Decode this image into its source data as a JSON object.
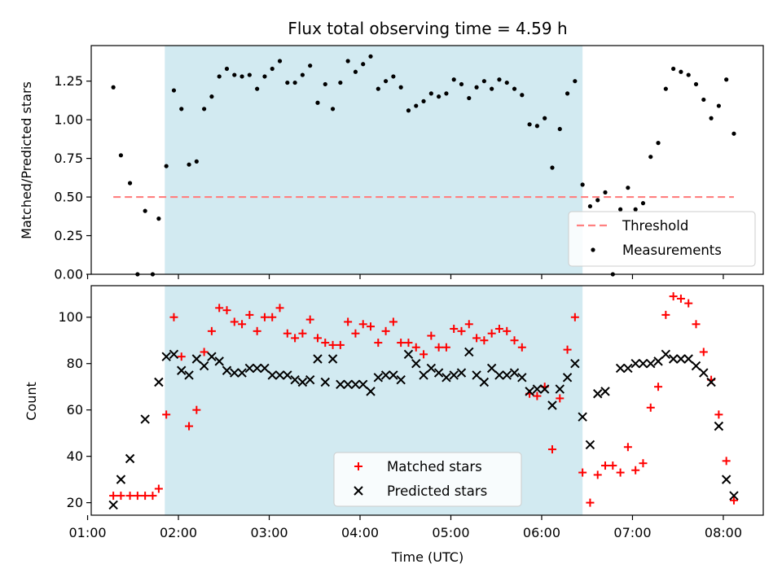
{
  "chart_data": [
    {
      "type": "scatter",
      "title": "Flux total observing time = 4.59 h",
      "xlabel": "",
      "ylabel": "Matched/Predicted stars",
      "ylim": [
        0,
        1.48
      ],
      "xlim_hours": [
        1.04,
        8.44
      ],
      "x_time_axis": "UTC",
      "yticks": [
        0,
        0.25,
        0.5,
        0.75,
        1.0,
        1.25
      ],
      "ytick_labels": [
        "0.00",
        "0.25",
        "0.50",
        "0.75",
        "1.00",
        "1.25"
      ],
      "shaded_interval": [
        "01:51",
        "06:27"
      ],
      "shade_color": "#add8e6",
      "threshold": {
        "name": "Threshold",
        "value": 0.5,
        "x_range": [
          "01:17",
          "08:07"
        ],
        "color": "#ff8080",
        "style": "dashed"
      },
      "series": [
        {
          "name": "Measurements",
          "marker": "dot",
          "color": "#000000",
          "points": [
            [
              "01:17",
              1.21
            ],
            [
              "01:22",
              0.77
            ],
            [
              "01:28",
              0.59
            ],
            [
              "01:33",
              0.0
            ],
            [
              "01:38",
              0.41
            ],
            [
              "01:43",
              0.0
            ],
            [
              "01:47",
              0.36
            ],
            [
              "01:52",
              0.7
            ],
            [
              "01:57",
              1.19
            ],
            [
              "02:02",
              1.07
            ],
            [
              "02:07",
              0.71
            ],
            [
              "02:12",
              0.73
            ],
            [
              "02:17",
              1.07
            ],
            [
              "02:22",
              1.15
            ],
            [
              "02:27",
              1.28
            ],
            [
              "02:32",
              1.33
            ],
            [
              "02:37",
              1.29
            ],
            [
              "02:42",
              1.28
            ],
            [
              "02:47",
              1.29
            ],
            [
              "02:52",
              1.2
            ],
            [
              "02:57",
              1.28
            ],
            [
              "03:02",
              1.33
            ],
            [
              "03:07",
              1.38
            ],
            [
              "03:12",
              1.24
            ],
            [
              "03:17",
              1.24
            ],
            [
              "03:22",
              1.29
            ],
            [
              "03:27",
              1.35
            ],
            [
              "03:32",
              1.11
            ],
            [
              "03:37",
              1.23
            ],
            [
              "03:42",
              1.07
            ],
            [
              "03:47",
              1.24
            ],
            [
              "03:52",
              1.38
            ],
            [
              "03:57",
              1.31
            ],
            [
              "04:02",
              1.36
            ],
            [
              "04:07",
              1.41
            ],
            [
              "04:12",
              1.2
            ],
            [
              "04:17",
              1.25
            ],
            [
              "04:22",
              1.28
            ],
            [
              "04:27",
              1.21
            ],
            [
              "04:32",
              1.06
            ],
            [
              "04:37",
              1.09
            ],
            [
              "04:42",
              1.12
            ],
            [
              "04:47",
              1.17
            ],
            [
              "04:52",
              1.15
            ],
            [
              "04:57",
              1.17
            ],
            [
              "05:02",
              1.26
            ],
            [
              "05:07",
              1.23
            ],
            [
              "05:12",
              1.14
            ],
            [
              "05:17",
              1.21
            ],
            [
              "05:22",
              1.25
            ],
            [
              "05:27",
              1.2
            ],
            [
              "05:32",
              1.26
            ],
            [
              "05:37",
              1.24
            ],
            [
              "05:42",
              1.2
            ],
            [
              "05:47",
              1.16
            ],
            [
              "05:52",
              0.97
            ],
            [
              "05:57",
              0.96
            ],
            [
              "06:02",
              1.01
            ],
            [
              "06:07",
              0.69
            ],
            [
              "06:12",
              0.94
            ],
            [
              "06:17",
              1.17
            ],
            [
              "06:22",
              1.25
            ],
            [
              "06:27",
              0.58
            ],
            [
              "06:32",
              0.44
            ],
            [
              "06:37",
              0.48
            ],
            [
              "06:42",
              0.53
            ],
            [
              "06:47",
              0.0
            ],
            [
              "06:52",
              0.42
            ],
            [
              "06:57",
              0.56
            ],
            [
              "07:02",
              0.42
            ],
            [
              "07:07",
              0.46
            ],
            [
              "07:12",
              0.76
            ],
            [
              "07:17",
              0.85
            ],
            [
              "07:22",
              1.2
            ],
            [
              "07:27",
              1.33
            ],
            [
              "07:32",
              1.31
            ],
            [
              "07:37",
              1.29
            ],
            [
              "07:42",
              1.23
            ],
            [
              "07:47",
              1.13
            ],
            [
              "07:52",
              1.01
            ],
            [
              "07:57",
              1.09
            ],
            [
              "08:02",
              1.26
            ],
            [
              "08:07",
              0.91
            ]
          ]
        }
      ],
      "legend": {
        "placement": "lower right",
        "entries": [
          "Threshold",
          "Measurements"
        ]
      }
    },
    {
      "type": "scatter",
      "title": "",
      "xlabel": "Time (UTC)",
      "ylabel": "Count",
      "ylim": [
        14.6,
        113.6
      ],
      "xlim_hours": [
        1.04,
        8.44
      ],
      "yticks": [
        20,
        40,
        60,
        80,
        100
      ],
      "ytick_labels": [
        "20",
        "40",
        "60",
        "80",
        "100"
      ],
      "xticks": [
        "01:00",
        "02:00",
        "03:00",
        "04:00",
        "05:00",
        "06:00",
        "07:00",
        "08:00"
      ],
      "shaded_interval": [
        "01:51",
        "06:27"
      ],
      "shade_color": "#add8e6",
      "series": [
        {
          "name": "Matched stars",
          "marker": "plus",
          "color": "#ff0000",
          "points": [
            [
              "01:17",
              23
            ],
            [
              "01:22",
              23
            ],
            [
              "01:28",
              23
            ],
            [
              "01:33",
              23
            ],
            [
              "01:38",
              23
            ],
            [
              "01:43",
              23
            ],
            [
              "01:47",
              26
            ],
            [
              "01:52",
              58
            ],
            [
              "01:57",
              100
            ],
            [
              "02:02",
              83
            ],
            [
              "02:07",
              53
            ],
            [
              "02:12",
              60
            ],
            [
              "02:17",
              85
            ],
            [
              "02:22",
              94
            ],
            [
              "02:27",
              104
            ],
            [
              "02:32",
              103
            ],
            [
              "02:37",
              98
            ],
            [
              "02:42",
              97
            ],
            [
              "02:47",
              101
            ],
            [
              "02:52",
              94
            ],
            [
              "02:57",
              100
            ],
            [
              "03:02",
              100
            ],
            [
              "03:07",
              104
            ],
            [
              "03:12",
              93
            ],
            [
              "03:17",
              91
            ],
            [
              "03:22",
              93
            ],
            [
              "03:27",
              99
            ],
            [
              "03:32",
              91
            ],
            [
              "03:37",
              89
            ],
            [
              "03:42",
              88
            ],
            [
              "03:47",
              88
            ],
            [
              "03:52",
              98
            ],
            [
              "03:57",
              93
            ],
            [
              "04:02",
              97
            ],
            [
              "04:07",
              96
            ],
            [
              "04:12",
              89
            ],
            [
              "04:17",
              94
            ],
            [
              "04:22",
              98
            ],
            [
              "04:27",
              89
            ],
            [
              "04:32",
              89
            ],
            [
              "04:37",
              87
            ],
            [
              "04:42",
              84
            ],
            [
              "04:47",
              92
            ],
            [
              "04:52",
              87
            ],
            [
              "04:57",
              87
            ],
            [
              "05:02",
              95
            ],
            [
              "05:07",
              94
            ],
            [
              "05:12",
              97
            ],
            [
              "05:17",
              91
            ],
            [
              "05:22",
              90
            ],
            [
              "05:27",
              93
            ],
            [
              "05:32",
              95
            ],
            [
              "05:37",
              94
            ],
            [
              "05:42",
              90
            ],
            [
              "05:47",
              87
            ],
            [
              "05:52",
              67
            ],
            [
              "05:57",
              66
            ],
            [
              "06:02",
              70
            ],
            [
              "06:07",
              43
            ],
            [
              "06:12",
              65
            ],
            [
              "06:17",
              86
            ],
            [
              "06:22",
              100
            ],
            [
              "06:27",
              33
            ],
            [
              "06:32",
              20
            ],
            [
              "06:37",
              32
            ],
            [
              "06:42",
              36
            ],
            [
              "06:47",
              36
            ],
            [
              "06:52",
              33
            ],
            [
              "06:57",
              44
            ],
            [
              "07:02",
              34
            ],
            [
              "07:07",
              37
            ],
            [
              "07:12",
              61
            ],
            [
              "07:17",
              70
            ],
            [
              "07:22",
              101
            ],
            [
              "07:27",
              109
            ],
            [
              "07:32",
              108
            ],
            [
              "07:37",
              106
            ],
            [
              "07:42",
              97
            ],
            [
              "07:47",
              85
            ],
            [
              "07:52",
              73
            ],
            [
              "07:57",
              58
            ],
            [
              "08:02",
              38
            ],
            [
              "08:07",
              21
            ]
          ]
        },
        {
          "name": "Predicted stars",
          "marker": "x",
          "color": "#000000",
          "points": [
            [
              "01:17",
              19
            ],
            [
              "01:22",
              30
            ],
            [
              "01:28",
              39
            ],
            [
              "01:38",
              56
            ],
            [
              "01:47",
              72
            ],
            [
              "01:52",
              83
            ],
            [
              "01:57",
              84
            ],
            [
              "02:02",
              77
            ],
            [
              "02:07",
              75
            ],
            [
              "02:12",
              82
            ],
            [
              "02:17",
              79
            ],
            [
              "02:22",
              83
            ],
            [
              "02:27",
              81
            ],
            [
              "02:32",
              77
            ],
            [
              "02:37",
              76
            ],
            [
              "02:42",
              76
            ],
            [
              "02:47",
              78
            ],
            [
              "02:52",
              78
            ],
            [
              "02:57",
              78
            ],
            [
              "03:02",
              75
            ],
            [
              "03:07",
              75
            ],
            [
              "03:12",
              75
            ],
            [
              "03:17",
              73
            ],
            [
              "03:22",
              72
            ],
            [
              "03:27",
              73
            ],
            [
              "03:32",
              82
            ],
            [
              "03:37",
              72
            ],
            [
              "03:42",
              82
            ],
            [
              "03:47",
              71
            ],
            [
              "03:52",
              71
            ],
            [
              "03:57",
              71
            ],
            [
              "04:02",
              71
            ],
            [
              "04:07",
              68
            ],
            [
              "04:12",
              74
            ],
            [
              "04:17",
              75
            ],
            [
              "04:22",
              75
            ],
            [
              "04:27",
              73
            ],
            [
              "04:32",
              84
            ],
            [
              "04:37",
              80
            ],
            [
              "04:42",
              75
            ],
            [
              "04:47",
              78
            ],
            [
              "04:52",
              76
            ],
            [
              "04:57",
              74
            ],
            [
              "05:02",
              75
            ],
            [
              "05:07",
              76
            ],
            [
              "05:12",
              85
            ],
            [
              "05:17",
              75
            ],
            [
              "05:22",
              72
            ],
            [
              "05:27",
              78
            ],
            [
              "05:32",
              75
            ],
            [
              "05:37",
              75
            ],
            [
              "05:42",
              76
            ],
            [
              "05:47",
              74
            ],
            [
              "05:52",
              68
            ],
            [
              "05:57",
              69
            ],
            [
              "06:02",
              69
            ],
            [
              "06:07",
              62
            ],
            [
              "06:12",
              69
            ],
            [
              "06:17",
              74
            ],
            [
              "06:22",
              80
            ],
            [
              "06:27",
              57
            ],
            [
              "06:32",
              45
            ],
            [
              "06:37",
              67
            ],
            [
              "06:42",
              68
            ],
            [
              "06:52",
              78
            ],
            [
              "06:57",
              78
            ],
            [
              "07:02",
              80
            ],
            [
              "07:07",
              80
            ],
            [
              "07:12",
              80
            ],
            [
              "07:17",
              81
            ],
            [
              "07:22",
              84
            ],
            [
              "07:27",
              82
            ],
            [
              "07:32",
              82
            ],
            [
              "07:37",
              82
            ],
            [
              "07:42",
              79
            ],
            [
              "07:47",
              76
            ],
            [
              "07:52",
              72
            ],
            [
              "07:57",
              53
            ],
            [
              "08:02",
              30
            ],
            [
              "08:07",
              23
            ]
          ]
        }
      ],
      "legend": {
        "placement": "lower center",
        "entries": [
          "Matched stars",
          "Predicted stars"
        ]
      }
    }
  ]
}
